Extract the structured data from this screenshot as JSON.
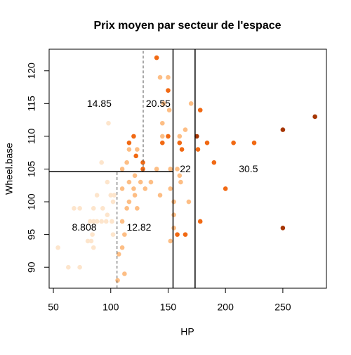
{
  "chart_data": {
    "type": "scatter",
    "title": "Prix moyen par secteur de l'espace",
    "x_label": "HP",
    "y_label": "Wheel.base",
    "xlim": [
      46.3,
      288
    ],
    "ylim": [
      86.8,
      123.3
    ],
    "xticks": [
      50,
      100,
      150,
      200,
      250
    ],
    "yticks": [
      90,
      95,
      100,
      105,
      110,
      115,
      120
    ],
    "series": [
      {
        "color": "#fde5cc",
        "x": [
          54,
          63,
          73,
          73,
          83,
          80,
          85,
          84,
          85,
          88,
          92,
          96,
          97,
          101,
          102,
          100,
          103,
          97,
          92,
          98,
          102,
          88,
          85,
          68,
          82,
          93
        ],
        "values": [
          93,
          90,
          90,
          99,
          94,
          94,
          93,
          95,
          97,
          97,
          97,
          97,
          98,
          97,
          95,
          101,
          101,
          103,
          106,
          112,
          100,
          101,
          99,
          99,
          97,
          99
        ]
      },
      {
        "color": "#fdbe85",
        "x": [
          106,
          107,
          110,
          112,
          110,
          112,
          114,
          116,
          121,
          116,
          110,
          114,
          116,
          121,
          123,
          120,
          110,
          123,
          126,
          130,
          135,
          143,
          146,
          150,
          151,
          145,
          140,
          143,
          145,
          152,
          152,
          155,
          155,
          152,
          155,
          158,
          161,
          160,
          160,
          165,
          170,
          168
        ],
        "values": [
          88,
          92,
          93,
          89,
          97,
          95,
          99,
          100,
          101,
          103,
          105,
          106,
          108,
          104,
          108,
          102,
          102,
          99,
          103,
          102,
          103,
          119,
          115,
          119,
          114,
          112,
          105,
          101,
          110,
          105,
          102,
          100,
          98,
          94,
          96,
          105,
          103,
          104,
          110,
          111,
          115,
          100
        ]
      },
      {
        "color": "#f16913",
        "x": [
          140,
          116,
          120,
          128,
          128,
          145,
          150,
          150,
          158,
          160,
          162,
          165,
          176,
          178,
          178,
          184,
          190,
          200,
          207,
          225,
          122
        ],
        "values": [
          122,
          109,
          110,
          106,
          105,
          109,
          117,
          110,
          95,
          109,
          108,
          95,
          108,
          114,
          97,
          109,
          106,
          102,
          109,
          109,
          107
        ]
      },
      {
        "color": "#a63603",
        "x": [
          175,
          250,
          250,
          278
        ],
        "values": [
          110,
          111,
          96,
          113
        ]
      }
    ],
    "segments": [
      {
        "x1": 154.3,
        "y1": 86.8,
        "x2": 154.3,
        "y2": 123.3,
        "dash": false
      },
      {
        "x1": 173.5,
        "y1": 86.8,
        "x2": 173.5,
        "y2": 123.3,
        "dash": false
      },
      {
        "x1": 46.3,
        "y1": 104.6,
        "x2": 154.3,
        "y2": 104.6,
        "dash": false
      },
      {
        "x1": 128.3,
        "y1": 104.6,
        "x2": 128.3,
        "y2": 123.3,
        "dash": true
      },
      {
        "x1": 105.5,
        "y1": 86.8,
        "x2": 105.5,
        "y2": 104.6,
        "dash": true
      }
    ],
    "annotations": [
      {
        "text": "14.85",
        "x": 90,
        "y": 114.9
      },
      {
        "text": "20.55",
        "x": 141.4,
        "y": 114.9
      },
      {
        "text": "22",
        "x": 165,
        "y": 104.9
      },
      {
        "text": "30.5",
        "x": 220,
        "y": 104.9
      },
      {
        "text": "8.808",
        "x": 76.9,
        "y": 96
      },
      {
        "text": "12.82",
        "x": 124.6,
        "y": 96
      }
    ]
  }
}
